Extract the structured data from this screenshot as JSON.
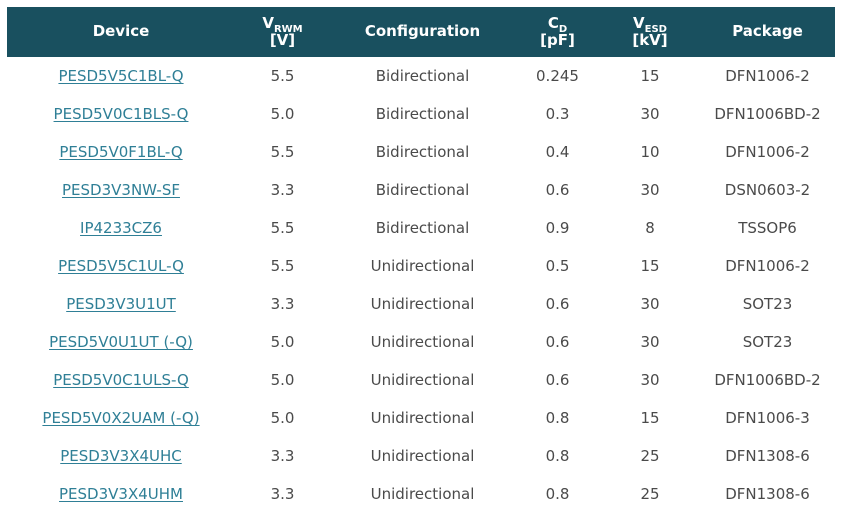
{
  "theme": {
    "header_bg": "#19505f",
    "header_text": "#ffffff",
    "link_color": "#2f7f96",
    "cell_text": "#4a4a4a",
    "page_bg": "#ffffff"
  },
  "table": {
    "columns": [
      {
        "id": "device",
        "label": "Device"
      },
      {
        "id": "vrwm",
        "label_main": "V",
        "label_sub": "RWM",
        "label_unit": "[V]"
      },
      {
        "id": "configuration",
        "label": "Configuration"
      },
      {
        "id": "cd",
        "label_main": "C",
        "label_sub": "D",
        "label_unit": "[pF]"
      },
      {
        "id": "vesd",
        "label_main": "V",
        "label_sub": "ESD",
        "label_unit": "[kV]"
      },
      {
        "id": "package",
        "label": "Package"
      }
    ],
    "rows": [
      {
        "device": "PESD5V5C1BL-Q",
        "vrwm": "5.5",
        "configuration": "Bidirectional",
        "cd": "0.245",
        "vesd": "15",
        "package": "DFN1006-2"
      },
      {
        "device": "PESD5V0C1BLS-Q",
        "vrwm": "5.0",
        "configuration": "Bidirectional",
        "cd": "0.3",
        "vesd": "30",
        "package": "DFN1006BD-2"
      },
      {
        "device": "PESD5V0F1BL-Q",
        "vrwm": "5.5",
        "configuration": "Bidirectional",
        "cd": "0.4",
        "vesd": "10",
        "package": "DFN1006-2"
      },
      {
        "device": "PESD3V3NW-SF",
        "vrwm": "3.3",
        "configuration": "Bidirectional",
        "cd": "0.6",
        "vesd": "30",
        "package": "DSN0603-2"
      },
      {
        "device": "IP4233CZ6",
        "vrwm": "5.5",
        "configuration": "Bidirectional",
        "cd": "0.9",
        "vesd": "8",
        "package": "TSSOP6"
      },
      {
        "device": "PESD5V5C1UL-Q",
        "vrwm": "5.5",
        "configuration": "Unidirectional",
        "cd": "0.5",
        "vesd": "15",
        "package": "DFN1006-2"
      },
      {
        "device": "PESD3V3U1UT",
        "vrwm": "3.3",
        "configuration": "Unidirectional",
        "cd": "0.6",
        "vesd": "30",
        "package": "SOT23"
      },
      {
        "device": "PESD5V0U1UT (-Q)",
        "vrwm": "5.0",
        "configuration": "Unidirectional",
        "cd": "0.6",
        "vesd": "30",
        "package": "SOT23"
      },
      {
        "device": "PESD5V0C1ULS-Q",
        "vrwm": "5.0",
        "configuration": "Unidirectional",
        "cd": "0.6",
        "vesd": "30",
        "package": "DFN1006BD-2"
      },
      {
        "device": "PESD5V0X2UAM (-Q)",
        "vrwm": "5.0",
        "configuration": "Unidirectional",
        "cd": "0.8",
        "vesd": "15",
        "package": "DFN1006-3"
      },
      {
        "device": "PESD3V3X4UHC",
        "vrwm": "3.3",
        "configuration": "Unidirectional",
        "cd": "0.8",
        "vesd": "25",
        "package": "DFN1308-6"
      },
      {
        "device": "PESD3V3X4UHM",
        "vrwm": "3.3",
        "configuration": "Unidirectional",
        "cd": "0.8",
        "vesd": "25",
        "package": "DFN1308-6"
      }
    ]
  }
}
